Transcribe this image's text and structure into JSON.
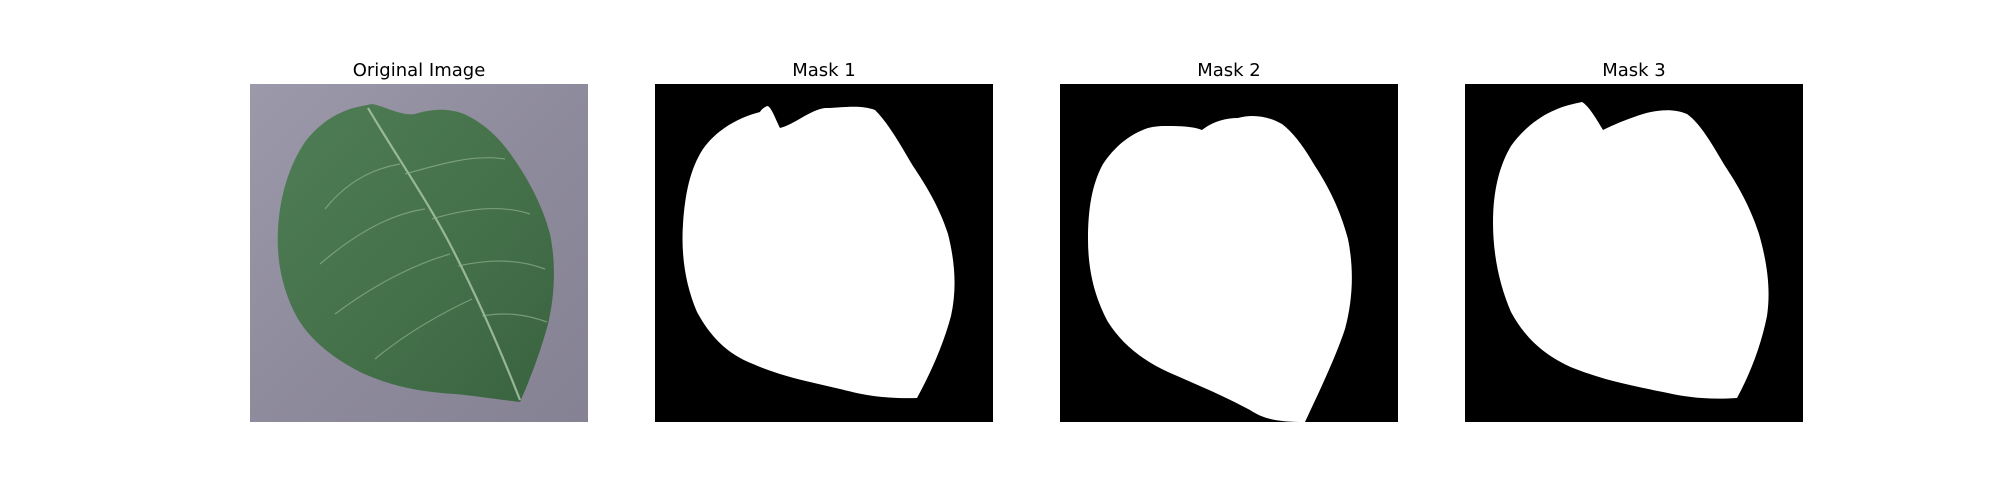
{
  "figure": {
    "panels": [
      {
        "title": "Original Image",
        "kind": "photo",
        "subject": "leaf"
      },
      {
        "title": "Mask 1",
        "kind": "mask"
      },
      {
        "title": "Mask 2",
        "kind": "mask"
      },
      {
        "title": "Mask 3",
        "kind": "mask"
      }
    ],
    "colors": {
      "mask_background": "#000000",
      "mask_foreground": "#ffffff",
      "photo_background": "#8f8c9c",
      "leaf_dark": "#3f6b45",
      "leaf_mid": "#4f7d55",
      "leaf_light": "#6f9a72",
      "vein": "#a8c4a2"
    }
  }
}
